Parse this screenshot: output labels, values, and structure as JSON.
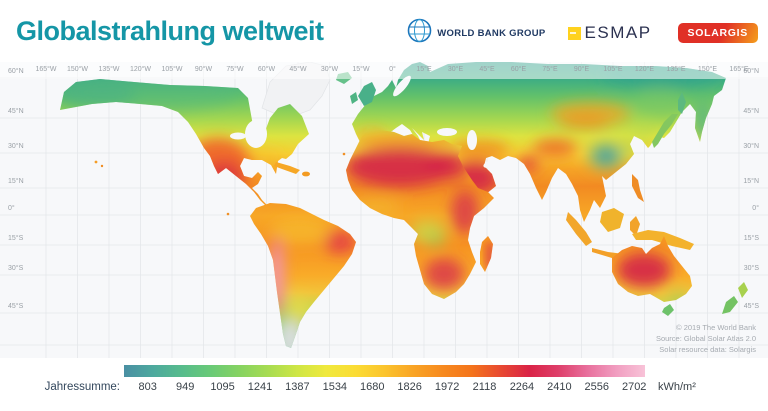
{
  "header": {
    "title": "Globalstrahlung weltweit"
  },
  "logos": {
    "world_bank": "WORLD BANK GROUP",
    "esmap": "ESMAP",
    "solargis": "SOLARGIS"
  },
  "map": {
    "lon_labels": [
      "165°W",
      "150°W",
      "135°W",
      "120°W",
      "105°W",
      "90°W",
      "75°W",
      "60°W",
      "45°W",
      "30°W",
      "15°W",
      "0°",
      "15°E",
      "30°E",
      "45°E",
      "60°E",
      "75°E",
      "90°E",
      "105°E",
      "120°E",
      "135°E",
      "150°E",
      "165°E"
    ],
    "lat_labels": [
      "60°N",
      "45°N",
      "30°N",
      "15°N",
      "0°",
      "15°S",
      "30°S",
      "45°S"
    ],
    "copyright": [
      "© 2019 The World Bank",
      "Source: Global Solar Atlas 2.0",
      "Solar resource data: Solargis"
    ]
  },
  "legend": {
    "label": "Jahressumme:",
    "values": [
      "803",
      "949",
      "1095",
      "1241",
      "1387",
      "1534",
      "1680",
      "1826",
      "1972",
      "2118",
      "2264",
      "2410",
      "2556",
      "2702"
    ],
    "unit": "kWh/m²",
    "gradient": [
      "#4a8fa3",
      "#4da99e",
      "#57bc8c",
      "#69ca77",
      "#86d361",
      "#a8dc51",
      "#cfe645",
      "#f0e93d",
      "#fbdc34",
      "#fbc42d",
      "#f9a425",
      "#f78a1f",
      "#f4741b",
      "#e84a31",
      "#da2346",
      "#de3f6a",
      "#e86f9c",
      "#f19dc0",
      "#f8c3d8"
    ]
  },
  "colors": {
    "accent_teal": "#1596A6",
    "solargis_red": "#e03026",
    "esmap_yellow": "#ffd21e",
    "worldbank_navy": "#203a63",
    "ocean": "#f7f8fa"
  }
}
